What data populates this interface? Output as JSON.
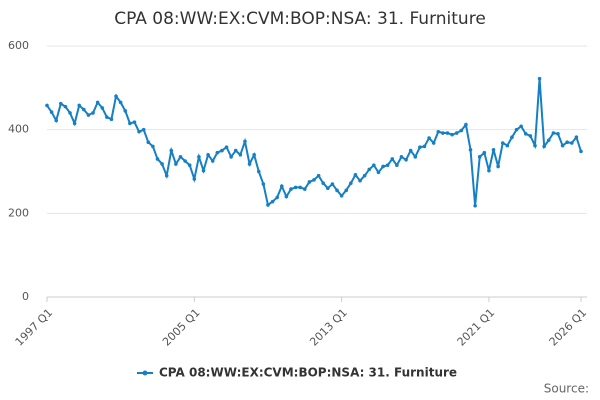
{
  "chart_data": {
    "type": "line",
    "title": "CPA 08:WW:EX:CVM:BOP:NSA: 31. Furniture",
    "categories": [
      "1997 Q1",
      null,
      null,
      null,
      null,
      null,
      null,
      null,
      null,
      null,
      null,
      null,
      null,
      null,
      null,
      null,
      null,
      null,
      null,
      null,
      null,
      null,
      null,
      null,
      null,
      null,
      null,
      null,
      null,
      null,
      null,
      null,
      "2005 Q1",
      null,
      null,
      null,
      null,
      null,
      null,
      null,
      null,
      null,
      null,
      null,
      null,
      null,
      null,
      null,
      null,
      null,
      null,
      null,
      null,
      null,
      null,
      null,
      null,
      null,
      null,
      null,
      null,
      null,
      null,
      null,
      "2013 Q1",
      null,
      null,
      null,
      null,
      null,
      null,
      null,
      null,
      null,
      null,
      null,
      null,
      null,
      null,
      null,
      null,
      null,
      null,
      null,
      null,
      null,
      null,
      null,
      null,
      null,
      null,
      null,
      null,
      null,
      null,
      null,
      "2021 Q1",
      null,
      null,
      null,
      null,
      null,
      null,
      null,
      null,
      null,
      null,
      null,
      null,
      null,
      null,
      null,
      null,
      null,
      null,
      null,
      "2026 Q1"
    ],
    "series": [
      {
        "name": "CPA 08:WW:EX:CVM:BOP:NSA: 31. Furniture",
        "color": "#1680c4",
        "values": [
          458,
          442,
          422,
          462,
          455,
          440,
          415,
          458,
          448,
          435,
          440,
          465,
          452,
          430,
          425,
          480,
          465,
          445,
          415,
          418,
          395,
          400,
          370,
          360,
          330,
          318,
          290,
          350,
          318,
          335,
          325,
          315,
          282,
          335,
          302,
          340,
          325,
          345,
          350,
          358,
          335,
          350,
          340,
          372,
          318,
          340,
          300,
          270,
          220,
          228,
          238,
          265,
          240,
          258,
          262,
          262,
          258,
          275,
          280,
          290,
          272,
          260,
          270,
          255,
          242,
          255,
          272,
          292,
          278,
          290,
          305,
          315,
          298,
          312,
          315,
          330,
          315,
          335,
          328,
          350,
          335,
          358,
          360,
          380,
          368,
          395,
          392,
          392,
          388,
          392,
          398,
          412,
          352,
          218,
          335,
          345,
          302,
          352,
          312,
          368,
          362,
          382,
          400,
          408,
          390,
          385,
          362,
          522,
          360,
          375,
          392,
          390,
          362,
          370,
          368,
          382,
          348
        ]
      }
    ],
    "ylim": [
      0,
      600
    ],
    "yticks": [
      0,
      200,
      400,
      600
    ],
    "grid": true,
    "source": "Source:"
  }
}
